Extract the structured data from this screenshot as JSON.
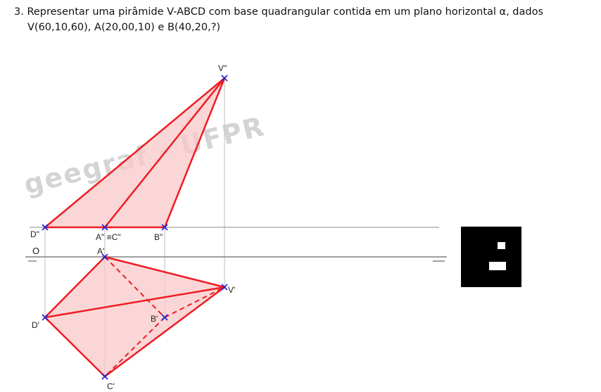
{
  "problem": {
    "line1": "3. Representar uma pirâmide V-ABCD com base quadrangular contida em um plano horizontal α, dados",
    "line2": "V(60,10,60), A(20,00,10) e B(40,20,?)"
  },
  "watermark": "geegraf - UFPR",
  "labels": {
    "V2": "V\"",
    "D2": "D\"",
    "A2C2": "A\" ≡C\"",
    "B2": "B\"",
    "O": "O",
    "A1": "A'",
    "V1": "V'",
    "D1": "D'",
    "B1": "B'",
    "C1": "C'"
  },
  "colors": {
    "edge": "#ee1c24",
    "fill": "#f8c8c8",
    "point": "#2222cc",
    "line": "#808080",
    "recall": "#c8c8c8"
  },
  "qr": {
    "name": "qr-code"
  }
}
